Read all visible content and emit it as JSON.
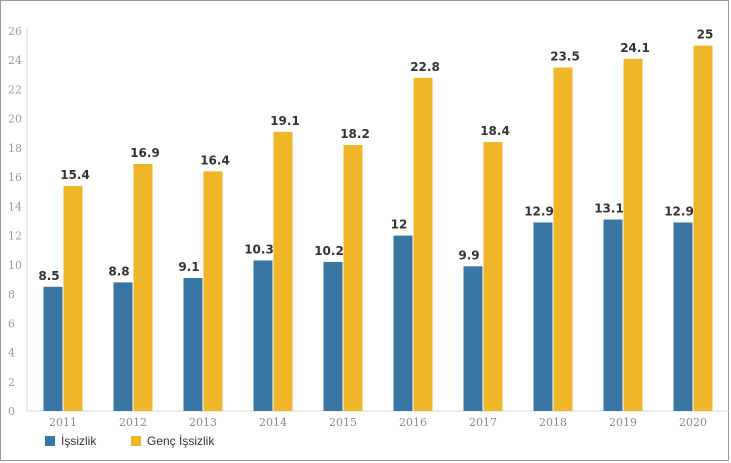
{
  "chart_data": {
    "type": "bar",
    "categories": [
      "2011",
      "2012",
      "2013",
      "2014",
      "2015",
      "2016",
      "2017",
      "2018",
      "2019",
      "2020"
    ],
    "series": [
      {
        "name": "İşsizlik",
        "color": "#3a76a4",
        "values": [
          8.5,
          8.8,
          9.1,
          10.3,
          10.2,
          12,
          9.9,
          12.9,
          13.1,
          12.9
        ]
      },
      {
        "name": "Genç İşsizlik",
        "color": "#f0b62a",
        "values": [
          15.4,
          16.9,
          16.4,
          19.1,
          18.2,
          22.8,
          18.4,
          23.5,
          24.1,
          25
        ]
      }
    ],
    "title": "",
    "xlabel": "",
    "ylabel": "",
    "ylim": [
      0,
      26
    ],
    "yticks": [
      0,
      2,
      4,
      6,
      8,
      10,
      12,
      14,
      16,
      18,
      20,
      22,
      24,
      26
    ],
    "grid": false,
    "data_labels": true,
    "legend_position": "bottom-left"
  }
}
